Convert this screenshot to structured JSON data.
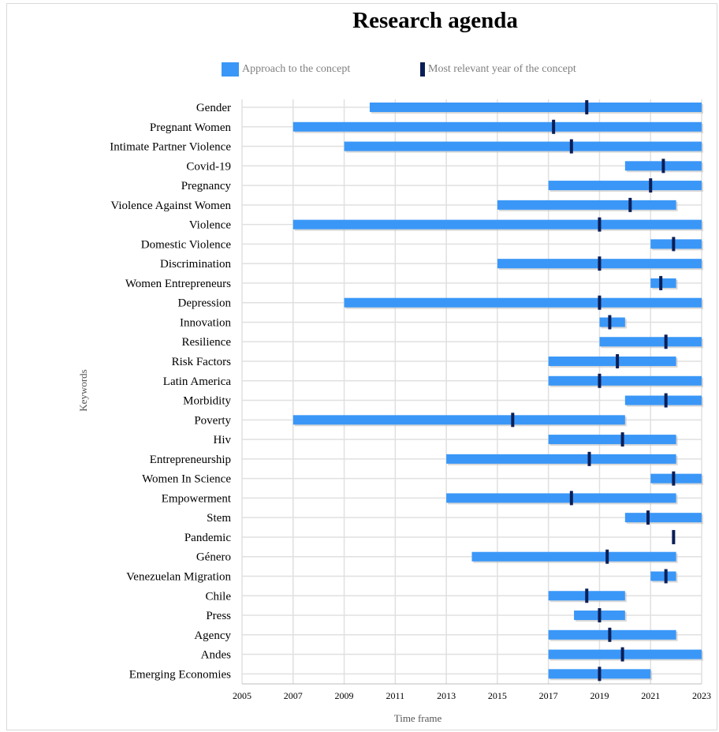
{
  "chart_data": {
    "type": "bar",
    "title": "Research agenda",
    "xlabel": "Time frame",
    "ylabel": "Keywords",
    "xlim": [
      2005,
      2023
    ],
    "xticks": [
      "2005",
      "2007",
      "2009",
      "2011",
      "2013",
      "2015",
      "2017",
      "2019",
      "2021",
      "2023"
    ],
    "legend": {
      "position": "top",
      "range_label": "Approach to the concept",
      "marker_label": "Most relevant year of the concept"
    },
    "colors": {
      "range": "#3a97f7",
      "marker": "#0b1e56",
      "grid": "#e0e0e0"
    },
    "grid": true,
    "keywords": [
      {
        "name": "Gender",
        "start": 2010,
        "end": 2023,
        "relevant": 2018.5
      },
      {
        "name": "Pregnant Women",
        "start": 2007,
        "end": 2023,
        "relevant": 2017.2
      },
      {
        "name": "Intimate Partner Violence",
        "start": 2009,
        "end": 2023,
        "relevant": 2017.9
      },
      {
        "name": "Covid-19",
        "start": 2020,
        "end": 2023,
        "relevant": 2021.5
      },
      {
        "name": "Pregnancy",
        "start": 2017,
        "end": 2023,
        "relevant": 2021.0
      },
      {
        "name": "Violence Against Women",
        "start": 2015,
        "end": 2022,
        "relevant": 2020.2
      },
      {
        "name": "Violence",
        "start": 2007,
        "end": 2023,
        "relevant": 2019.0
      },
      {
        "name": "Domestic Violence",
        "start": 2021,
        "end": 2023,
        "relevant": 2021.9
      },
      {
        "name": "Discrimination",
        "start": 2015,
        "end": 2023,
        "relevant": 2019.0
      },
      {
        "name": "Women Entrepreneurs",
        "start": 2021,
        "end": 2022,
        "relevant": 2021.4
      },
      {
        "name": "Depression",
        "start": 2009,
        "end": 2023,
        "relevant": 2019.0
      },
      {
        "name": "Innovation",
        "start": 2019,
        "end": 2020,
        "relevant": 2019.4
      },
      {
        "name": "Resilience",
        "start": 2019,
        "end": 2023,
        "relevant": 2021.6
      },
      {
        "name": "Risk Factors",
        "start": 2017,
        "end": 2022,
        "relevant": 2019.7
      },
      {
        "name": "Latin America",
        "start": 2017,
        "end": 2023,
        "relevant": 2019.0
      },
      {
        "name": "Morbidity",
        "start": 2020,
        "end": 2023,
        "relevant": 2021.6
      },
      {
        "name": "Poverty",
        "start": 2007,
        "end": 2020,
        "relevant": 2015.6
      },
      {
        "name": "Hiv",
        "start": 2017,
        "end": 2022,
        "relevant": 2019.9
      },
      {
        "name": "Entrepreneurship",
        "start": 2013,
        "end": 2022,
        "relevant": 2018.6
      },
      {
        "name": "Women In Science",
        "start": 2021,
        "end": 2023,
        "relevant": 2021.9
      },
      {
        "name": "Empowerment",
        "start": 2013,
        "end": 2022,
        "relevant": 2017.9
      },
      {
        "name": "Stem",
        "start": 2020,
        "end": 2023,
        "relevant": 2020.9
      },
      {
        "name": "Pandemic",
        "start": null,
        "end": null,
        "relevant": 2021.9
      },
      {
        "name": "Género",
        "start": 2014,
        "end": 2022,
        "relevant": 2019.3
      },
      {
        "name": "Venezuelan Migration",
        "start": 2021,
        "end": 2022,
        "relevant": 2021.6
      },
      {
        "name": "Chile",
        "start": 2017,
        "end": 2020,
        "relevant": 2018.5
      },
      {
        "name": "Press",
        "start": 2018,
        "end": 2020,
        "relevant": 2019.0
      },
      {
        "name": "Agency",
        "start": 2017,
        "end": 2022,
        "relevant": 2019.4
      },
      {
        "name": "Andes",
        "start": 2017,
        "end": 2023,
        "relevant": 2019.9
      },
      {
        "name": "Emerging Economies",
        "start": 2017,
        "end": 2021,
        "relevant": 2019.0
      }
    ]
  }
}
